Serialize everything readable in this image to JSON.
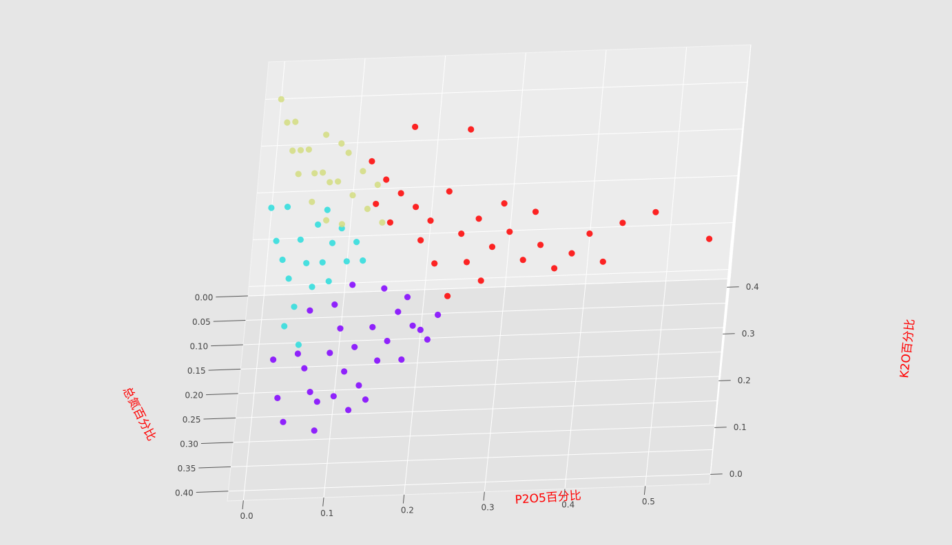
{
  "chart_data": {
    "type": "scatter",
    "projection": "3d",
    "background_color": "#e6e6e6",
    "pane_color": "#ebebeb",
    "grid": true,
    "grid_color": "#ffffff",
    "axes": {
      "x": {
        "label": "P2O5百分比",
        "label_color": "#ff0000",
        "ticks": [
          "0.0",
          "0.1",
          "0.2",
          "0.3",
          "0.4",
          "0.5"
        ],
        "range": [
          -0.02,
          0.58
        ]
      },
      "y": {
        "label": "总氮百分比",
        "label_color": "#ff0000",
        "ticks": [
          "0.00",
          "0.05",
          "0.10",
          "0.15",
          "0.20",
          "0.25",
          "0.30",
          "0.35",
          "0.40"
        ],
        "range": [
          0.0,
          0.42
        ]
      },
      "z": {
        "label": "K2O百分比",
        "label_color": "#ff0000",
        "ticks": [
          "0.0",
          "0.1",
          "0.2",
          "0.3",
          "0.4"
        ],
        "range": [
          -0.02,
          0.48
        ]
      }
    },
    "series": [
      {
        "color": "#8000ff",
        "points": [
          [
            0.02,
            0.2,
            0.05
          ],
          [
            0.03,
            0.26,
            0.03
          ],
          [
            0.04,
            0.3,
            0.02
          ],
          [
            0.05,
            0.18,
            0.04
          ],
          [
            0.06,
            0.22,
            0.05
          ],
          [
            0.07,
            0.25,
            0.03
          ],
          [
            0.08,
            0.28,
            0.04
          ],
          [
            0.09,
            0.2,
            0.06
          ],
          [
            0.1,
            0.16,
            0.07
          ],
          [
            0.11,
            0.22,
            0.04
          ],
          [
            0.12,
            0.18,
            0.05
          ],
          [
            0.13,
            0.24,
            0.03
          ],
          [
            0.14,
            0.15,
            0.06
          ],
          [
            0.15,
            0.2,
            0.04
          ],
          [
            0.16,
            0.17,
            0.05
          ],
          [
            0.17,
            0.13,
            0.07
          ],
          [
            0.18,
            0.19,
            0.03
          ],
          [
            0.19,
            0.15,
            0.06
          ],
          [
            0.2,
            0.14,
            0.04
          ],
          [
            0.22,
            0.12,
            0.05
          ],
          [
            0.08,
            0.32,
            0.02
          ],
          [
            0.12,
            0.29,
            0.03
          ],
          [
            0.06,
            0.14,
            0.09
          ],
          [
            0.09,
            0.12,
            0.08
          ],
          [
            0.11,
            0.1,
            0.1
          ],
          [
            0.15,
            0.1,
            0.09
          ],
          [
            0.18,
            0.11,
            0.08
          ],
          [
            0.14,
            0.26,
            0.02
          ],
          [
            0.1,
            0.27,
            0.04
          ],
          [
            0.21,
            0.17,
            0.05
          ]
        ]
      },
      {
        "color": "#2adddd",
        "points": [
          [
            0.01,
            0.1,
            0.2
          ],
          [
            0.02,
            0.12,
            0.18
          ],
          [
            0.03,
            0.14,
            0.16
          ],
          [
            0.04,
            0.08,
            0.18
          ],
          [
            0.05,
            0.1,
            0.15
          ],
          [
            0.06,
            0.06,
            0.19
          ],
          [
            0.07,
            0.09,
            0.14
          ],
          [
            0.08,
            0.07,
            0.16
          ],
          [
            0.09,
            0.05,
            0.17
          ],
          [
            0.1,
            0.08,
            0.13
          ],
          [
            0.11,
            0.06,
            0.15
          ],
          [
            0.04,
            0.16,
            0.12
          ],
          [
            0.06,
            0.13,
            0.13
          ],
          [
            0.03,
            0.18,
            0.1
          ],
          [
            0.05,
            0.2,
            0.08
          ],
          [
            0.02,
            0.05,
            0.22
          ],
          [
            0.07,
            0.04,
            0.2
          ],
          [
            0.12,
            0.07,
            0.12
          ],
          [
            0.08,
            0.11,
            0.12
          ],
          [
            0.0,
            0.07,
            0.24
          ]
        ]
      },
      {
        "color": "#d4dd80",
        "points": [
          [
            0.0,
            0.02,
            0.42
          ],
          [
            0.01,
            0.03,
            0.38
          ],
          [
            0.02,
            0.01,
            0.36
          ],
          [
            0.03,
            0.04,
            0.33
          ],
          [
            0.04,
            0.02,
            0.31
          ],
          [
            0.05,
            0.05,
            0.29
          ],
          [
            0.06,
            0.03,
            0.27
          ],
          [
            0.07,
            0.06,
            0.28
          ],
          [
            0.08,
            0.04,
            0.26
          ],
          [
            0.09,
            0.02,
            0.3
          ],
          [
            0.1,
            0.05,
            0.24
          ],
          [
            0.11,
            0.03,
            0.27
          ],
          [
            0.12,
            0.06,
            0.22
          ],
          [
            0.13,
            0.04,
            0.25
          ],
          [
            0.05,
            0.08,
            0.26
          ],
          [
            0.07,
            0.09,
            0.23
          ],
          [
            0.09,
            0.08,
            0.21
          ],
          [
            0.03,
            0.06,
            0.3
          ],
          [
            0.02,
            0.05,
            0.34
          ],
          [
            0.14,
            0.07,
            0.2
          ],
          [
            0.06,
            0.01,
            0.33
          ],
          [
            0.08,
            0.01,
            0.31
          ]
        ]
      },
      {
        "color": "#ff0000",
        "points": [
          [
            0.12,
            0.02,
            0.28
          ],
          [
            0.14,
            0.03,
            0.25
          ],
          [
            0.16,
            0.04,
            0.23
          ],
          [
            0.18,
            0.05,
            0.21
          ],
          [
            0.2,
            0.06,
            0.19
          ],
          [
            0.22,
            0.03,
            0.22
          ],
          [
            0.24,
            0.07,
            0.17
          ],
          [
            0.26,
            0.05,
            0.18
          ],
          [
            0.28,
            0.08,
            0.15
          ],
          [
            0.3,
            0.06,
            0.16
          ],
          [
            0.32,
            0.09,
            0.13
          ],
          [
            0.34,
            0.07,
            0.14
          ],
          [
            0.36,
            0.1,
            0.12
          ],
          [
            0.38,
            0.08,
            0.13
          ],
          [
            0.4,
            0.06,
            0.15
          ],
          [
            0.44,
            0.05,
            0.16
          ],
          [
            0.48,
            0.04,
            0.17
          ],
          [
            0.55,
            0.07,
            0.14
          ],
          [
            0.17,
            0.01,
            0.34
          ],
          [
            0.24,
            0.0,
            0.32
          ],
          [
            0.15,
            0.08,
            0.21
          ],
          [
            0.19,
            0.09,
            0.18
          ],
          [
            0.21,
            0.11,
            0.15
          ],
          [
            0.25,
            0.1,
            0.14
          ],
          [
            0.27,
            0.12,
            0.12
          ],
          [
            0.13,
            0.06,
            0.23
          ],
          [
            0.29,
            0.03,
            0.19
          ],
          [
            0.33,
            0.04,
            0.18
          ],
          [
            0.42,
            0.09,
            0.12
          ],
          [
            0.23,
            0.13,
            0.1
          ]
        ]
      }
    ]
  }
}
